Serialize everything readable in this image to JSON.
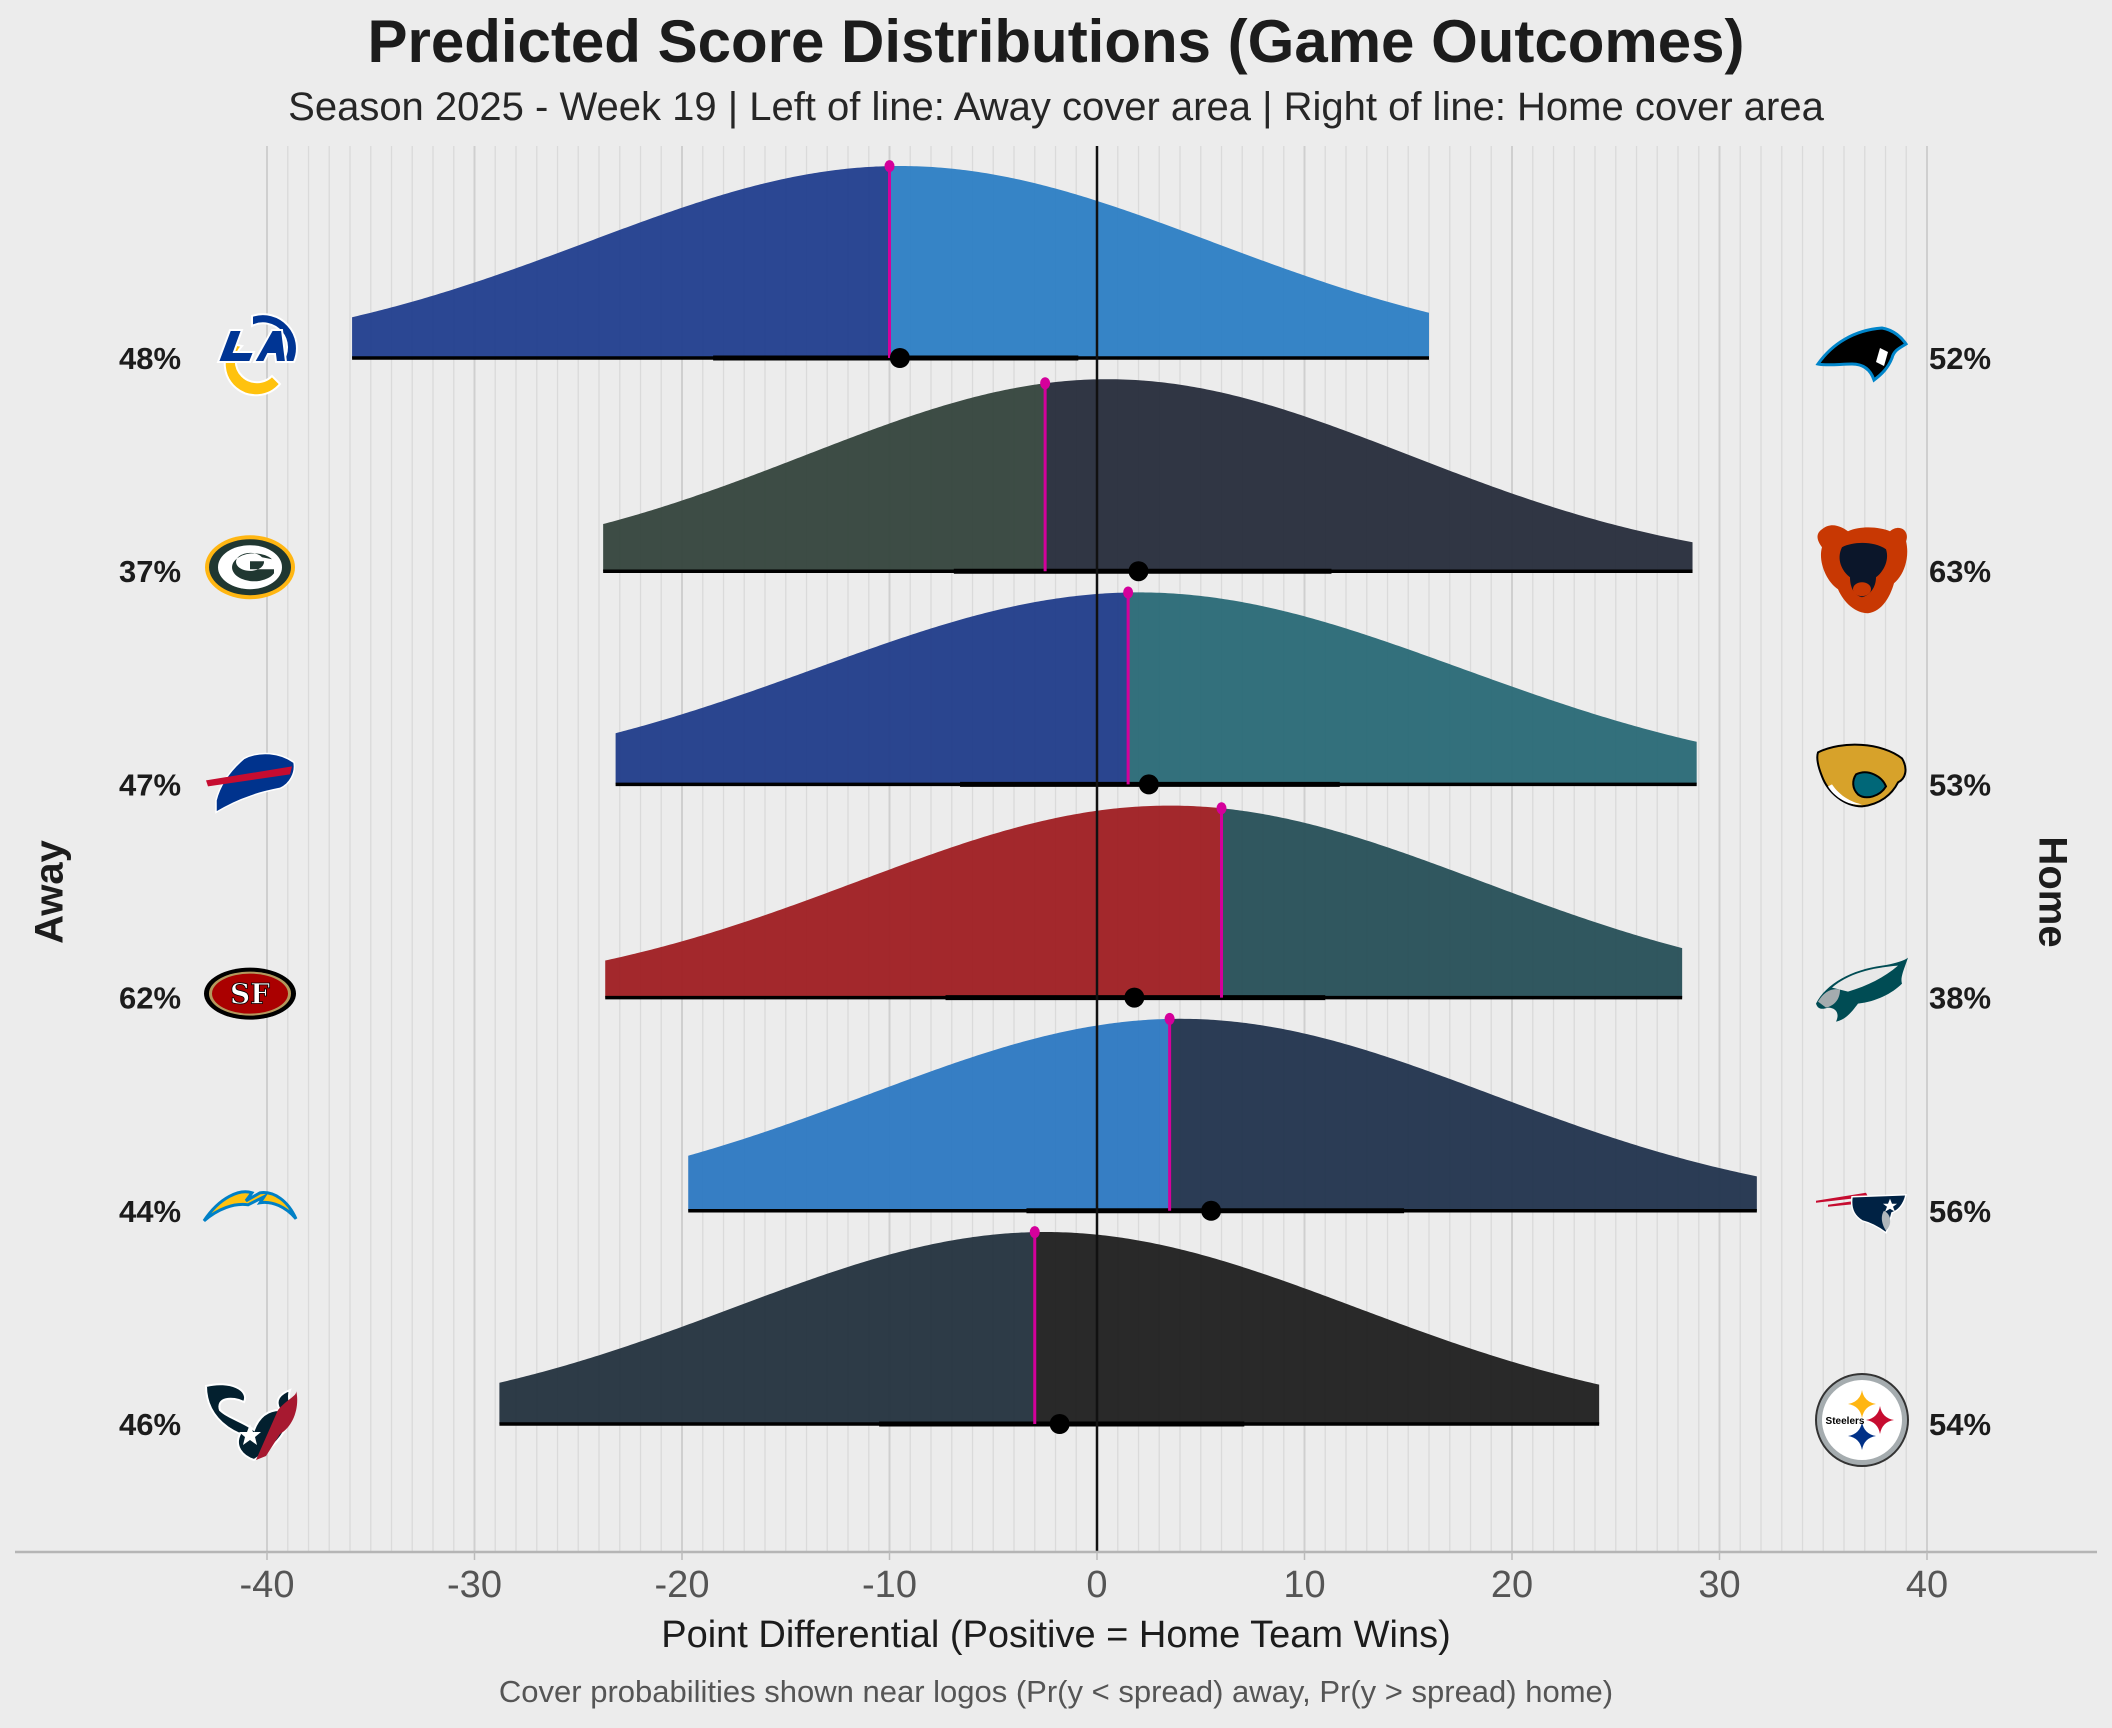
{
  "chart_data": {
    "type": "ridgeline",
    "title": "Predicted Score Distributions (Game Outcomes)",
    "subtitle": "Season 2025 - Week 19 | Left of line: Away cover area | Right of line: Home cover area",
    "xlabel": "Point Differential (Positive = Home Team Wins)",
    "caption": "Cover probabilities shown near logos (Pr(y < spread) away, Pr(y > spread) home)",
    "ylabel_left": "Away",
    "ylabel_right": "Home",
    "xlim": [
      -40,
      40
    ],
    "xticks": [
      -40,
      -30,
      -20,
      -10,
      0,
      10,
      20,
      30,
      40
    ],
    "tick_labels": [
      "-40",
      "-30",
      "-20",
      "-10",
      "0",
      "10",
      "20",
      "30",
      "40"
    ],
    "grid": true,
    "zero_line": true,
    "games": [
      {
        "away": "Rams",
        "home": "Panthers",
        "away_icon": "rams-logo-icon",
        "home_icon": "panthers-logo-icon",
        "away_cover": "48%",
        "home_cover": "52%",
        "range": [
          -35.9,
          16.0
        ],
        "mean": -9.5,
        "sd": 15,
        "spread": -10.0,
        "prediction": -9.5,
        "interval": [
          -18.5,
          -0.9
        ],
        "away_color": "#24418f",
        "home_color": "#2f80c4"
      },
      {
        "away": "Packers",
        "home": "Bears",
        "away_icon": "packers-logo-icon",
        "home_icon": "bears-logo-icon",
        "away_cover": "37%",
        "home_cover": "63%",
        "range": [
          -23.8,
          28.7
        ],
        "mean": 0.5,
        "sd": 14.5,
        "spread": -2.5,
        "prediction": 2.0,
        "interval": [
          -6.9,
          11.3
        ],
        "away_color": "#37463f",
        "home_color": "#29303e"
      },
      {
        "away": "Bills",
        "home": "Jaguars",
        "away_icon": "bills-logo-icon",
        "home_icon": "jaguars-logo-icon",
        "away_cover": "47%",
        "home_cover": "53%",
        "range": [
          -23.2,
          28.9
        ],
        "mean": 2.0,
        "sd": 15.5,
        "spread": 1.5,
        "prediction": 2.5,
        "interval": [
          -6.6,
          11.7
        ],
        "away_color": "#233f8b",
        "home_color": "#2c6b78"
      },
      {
        "away": "49ers",
        "home": "Eagles",
        "away_icon": "49ers-logo-icon",
        "home_icon": "eagles-logo-icon",
        "away_cover": "62%",
        "home_cover": "38%",
        "range": [
          -23.7,
          28.2
        ],
        "mean": 3.5,
        "sd": 15,
        "spread": 6.0,
        "prediction": 1.8,
        "interval": [
          -7.3,
          11.0
        ],
        "away_color": "#a02125",
        "home_color": "#29525a"
      },
      {
        "away": "Chargers",
        "home": "Patriots",
        "away_icon": "chargers-logo-icon",
        "home_icon": "patriots-logo-icon",
        "away_cover": "44%",
        "home_cover": "56%",
        "range": [
          -19.7,
          31.8
        ],
        "mean": 4.0,
        "sd": 15,
        "spread": 3.5,
        "prediction": 5.5,
        "interval": [
          -3.4,
          14.8
        ],
        "away_color": "#2f7ac2",
        "home_color": "#243650"
      },
      {
        "away": "Texans",
        "home": "Steelers",
        "away_icon": "texans-logo-icon",
        "home_icon": "steelers-logo-icon",
        "away_cover": "46%",
        "home_cover": "54%",
        "range": [
          -28.8,
          24.2
        ],
        "mean": -2.5,
        "sd": 15,
        "spread": -3.0,
        "prediction": -1.8,
        "interval": [
          -10.5,
          7.1
        ],
        "away_color": "#263541",
        "home_color": "#222222"
      }
    ],
    "spread_color": "#d4009b",
    "steelers_wordmark": "Steelers"
  }
}
